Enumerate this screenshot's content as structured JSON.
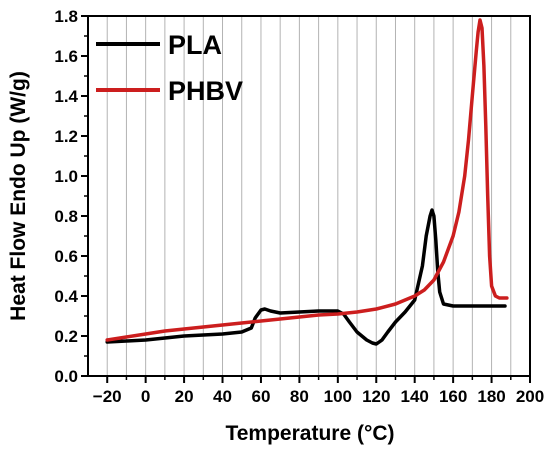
{
  "chart_data": {
    "type": "line",
    "xlabel": "Temperature (°C)",
    "ylabel": "Heat Flow Endo Up (W/g)",
    "xlim": [
      -30,
      200
    ],
    "ylim": [
      0.0,
      1.8
    ],
    "xticks": [
      -20,
      0,
      20,
      40,
      60,
      80,
      100,
      120,
      140,
      160,
      180,
      200
    ],
    "xtick_labels": [
      "−20",
      "0",
      "20",
      "40",
      "60",
      "80",
      "100",
      "120",
      "140",
      "160",
      "180",
      "200"
    ],
    "yticks": [
      0.0,
      0.2,
      0.4,
      0.6,
      0.8,
      1.0,
      1.2,
      1.4,
      1.6,
      1.8
    ],
    "ytick_labels": [
      "0.0",
      "0.2",
      "0.4",
      "0.6",
      "0.8",
      "1.0",
      "1.2",
      "1.4",
      "1.6",
      "1.8"
    ],
    "grid": "vertical",
    "legend_position": "top-left",
    "series": [
      {
        "name": "PLA",
        "color": "#000000",
        "x": [
          -20,
          -10,
          0,
          10,
          20,
          30,
          40,
          50,
          55,
          57,
          60,
          62,
          65,
          70,
          80,
          90,
          100,
          103,
          106,
          110,
          115,
          118,
          120,
          123,
          126,
          130,
          135,
          140,
          144,
          146,
          148,
          149,
          150,
          151,
          152,
          153,
          155,
          160,
          170,
          180,
          187
        ],
        "y": [
          0.17,
          0.175,
          0.18,
          0.19,
          0.2,
          0.205,
          0.21,
          0.22,
          0.24,
          0.29,
          0.33,
          0.335,
          0.325,
          0.315,
          0.32,
          0.325,
          0.325,
          0.31,
          0.27,
          0.22,
          0.18,
          0.165,
          0.16,
          0.18,
          0.22,
          0.27,
          0.32,
          0.38,
          0.55,
          0.7,
          0.8,
          0.83,
          0.8,
          0.68,
          0.52,
          0.42,
          0.36,
          0.35,
          0.35,
          0.35,
          0.35
        ]
      },
      {
        "name": "PHBV",
        "color": "#cc1e1e",
        "x": [
          -20,
          -10,
          0,
          10,
          20,
          30,
          40,
          50,
          60,
          70,
          80,
          90,
          100,
          110,
          120,
          130,
          140,
          145,
          150,
          155,
          160,
          163,
          166,
          168,
          170,
          172,
          173,
          174,
          175,
          176,
          177,
          178,
          179,
          180,
          182,
          184,
          186,
          188
        ],
        "y": [
          0.18,
          0.195,
          0.21,
          0.225,
          0.235,
          0.245,
          0.255,
          0.265,
          0.275,
          0.285,
          0.295,
          0.305,
          0.31,
          0.32,
          0.335,
          0.36,
          0.4,
          0.43,
          0.48,
          0.57,
          0.7,
          0.82,
          1.0,
          1.18,
          1.4,
          1.62,
          1.72,
          1.78,
          1.74,
          1.55,
          1.25,
          0.9,
          0.6,
          0.45,
          0.4,
          0.39,
          0.39,
          0.39
        ]
      }
    ]
  }
}
